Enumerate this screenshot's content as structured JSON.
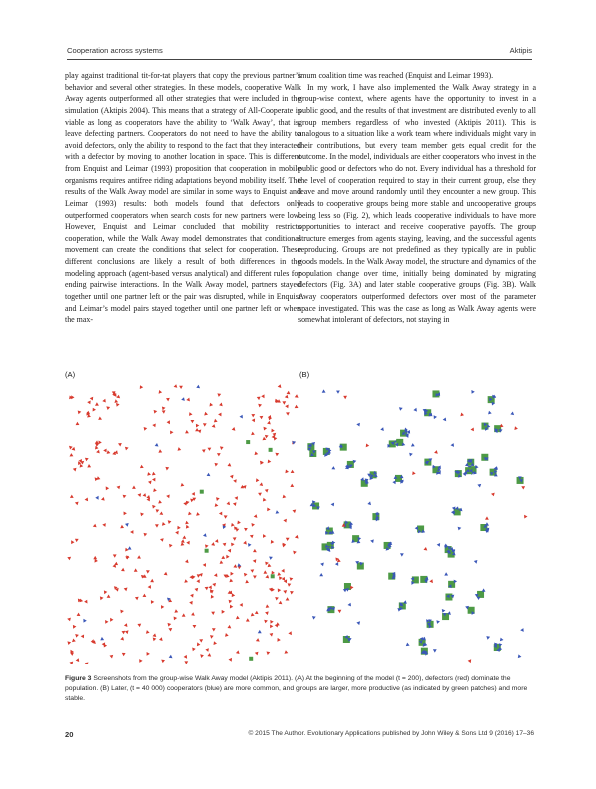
{
  "header": {
    "left": "Cooperation across systems",
    "right": "Aktipis"
  },
  "left_column": [
    "play against traditional tit-for-tat players that copy the previous partner’s behavior and several other strategies. In these models, cooperative Walk Away agents outperformed all other strategies that were included in the simulation (Aktipis 2004). This means that a strategy of All-Cooperate is viable as long as cooperators have the ability to ‘Walk Away’, that is, leave defecting partners. Cooperators do not need to have the ability to avoid defectors, only the ability to respond to the fact that they interacted with a defector by moving to another location in space. This is different from Enquist and Leimar (1993) proposition that cooperation in mobile organisms requires antifree riding adaptations beyond mobility itself. The results of the Walk Away model are similar in some ways to Enquist and Leimar (1993) results: both models found that defectors only outperformed cooperators when search costs for new partners were low. However, Enquist and Leimar concluded that mobility restricts cooperation, while the Walk Away model demonstrates that conditional movement can create the conditions that select for cooperation. These different conclusions are likely a result of both differences in the modeling approach (agent-based versus analytical) and different rules for ending pairwise interactions. In the Walk Away model, partners stayed together until one partner left or the pair was disrupted, while in Enquist and Leimar’s model pairs stayed together until one partner left or when the max-"
  ],
  "right_column": [
    "imum coalition time was reached (Enquist and Leimar 1993).",
    "In my work, I have also implemented the Walk Away strategy in a group-wise context, where agents have the opportunity to invest in a public good, and the results of that investment are distributed evenly to all group members regardless of who invested (Aktipis 2011). This is analogous to a situation like a work team where individuals might vary in their contributions, but every team member gets equal credit for the outcome. In the model, individuals are either cooperators who invest in the public good or defectors who do not. Every individual has a threshold for the level of cooperation required to stay in their current group, else they leave and move around randomly until they encounter a new group. This leads to cooperative groups being more stable and uncooperative groups being less so (Fig. 2), which leads cooperative individuals to have more opportunities to interact and receive cooperative payoffs. The group structure emerges from agents staying, leaving, and the successful agents reproducing. Groups are not predefined as they typically are in public goods models. In the Walk Away model, the structure and dynamics of the population change over time, initially being dominated by migrating defectors (Fig. 3A) and later stable cooperative groups (Fig. 3B). Walk Away cooperators outperformed defectors over most of the parameter space investigated. This was the case as long as Walk Away agents were somewhat intolerant of defectors, not staying in"
  ],
  "figure": {
    "panel_a_label": "(A)",
    "panel_b_label": "(B)",
    "caption_lead": "Figure 3",
    "caption_text": " Screenshots from the group-wise Walk Away model (Aktipis 2011). (A) At the beginning of the model (t = 200), defectors (red) dominate the population. (B) Later, (t = 40 000) cooperators (blue) are more common, and groups are larger, more productive (as indicated by green patches) and more stable.",
    "colors": {
      "defector": "#d83a2e",
      "cooperator": "#3a57b8",
      "patch": "#4d9a45"
    }
  },
  "footer": {
    "page_number": "20",
    "copyright": "© 2015 The Author. Evolutionary Applications published by John Wiley & Sons Ltd 9 (2016) 17–36"
  }
}
